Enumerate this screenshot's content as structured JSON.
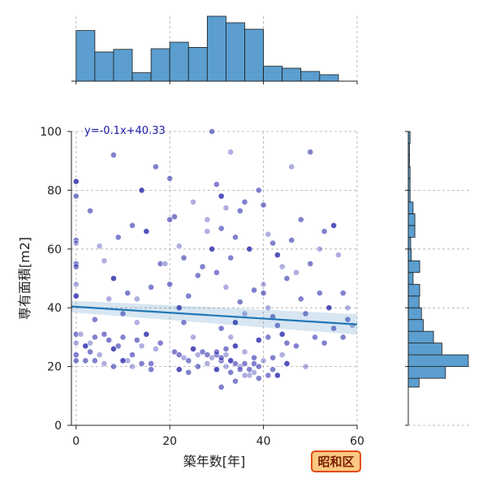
{
  "chart_data": {
    "type": "scatter",
    "title": "",
    "xlabel": "築年数[年]",
    "ylabel": "専有面積[m2]",
    "xlim": [
      -1,
      60
    ],
    "ylim": [
      0,
      100
    ],
    "xticks": [
      0,
      20,
      40,
      60
    ],
    "yticks": [
      0,
      20,
      40,
      60,
      80,
      100
    ],
    "grid": true,
    "regression": {
      "label": "y=-0.1x+40.33",
      "slope": -0.1,
      "intercept": 40.33,
      "color": "#1f77b4"
    },
    "point_color": "#1a1aa6",
    "hist_color": "#5b9ecf",
    "top_histogram": {
      "bin_edges": [
        0,
        4,
        8,
        12,
        16,
        20,
        24,
        28,
        32,
        36,
        40,
        44,
        48,
        52,
        56
      ],
      "relative_heights": [
        0.78,
        0.45,
        0.49,
        0.13,
        0.5,
        0.6,
        0.52,
        1.0,
        0.9,
        0.8,
        0.23,
        0.2,
        0.15,
        0.1
      ]
    },
    "right_histogram": {
      "bin_edges": [
        13,
        16,
        20,
        24,
        28,
        32,
        36,
        40,
        44,
        48,
        52,
        56,
        60,
        64,
        68,
        72,
        76,
        80,
        84,
        88,
        92,
        96,
        100
      ],
      "relative_widths": [
        0.18,
        0.62,
        1.0,
        0.56,
        0.42,
        0.25,
        0.22,
        0.18,
        0.19,
        0.08,
        0.19,
        0.05,
        0.04,
        0.11,
        0.11,
        0.08,
        0.03,
        0.03,
        0.03,
        0.02,
        0.02,
        0.03
      ]
    },
    "points": [
      [
        0,
        83
      ],
      [
        0,
        78
      ],
      [
        0,
        63
      ],
      [
        0,
        62
      ],
      [
        0,
        55
      ],
      [
        0,
        54
      ],
      [
        0,
        48
      ],
      [
        0,
        44
      ],
      [
        0,
        31
      ],
      [
        0,
        28
      ],
      [
        0,
        24
      ],
      [
        0,
        22
      ],
      [
        1,
        31
      ],
      [
        2,
        22
      ],
      [
        2,
        27
      ],
      [
        3,
        28
      ],
      [
        3,
        25
      ],
      [
        4,
        30
      ],
      [
        5,
        24
      ],
      [
        6,
        31
      ],
      [
        7,
        29
      ],
      [
        8,
        26
      ],
      [
        9,
        27
      ],
      [
        10,
        30
      ],
      [
        11,
        22
      ],
      [
        12,
        24
      ],
      [
        13,
        29
      ],
      [
        14,
        27
      ],
      [
        15,
        31
      ],
      [
        16,
        21
      ],
      [
        17,
        26
      ],
      [
        18,
        28
      ],
      [
        4,
        22
      ],
      [
        6,
        21
      ],
      [
        8,
        20
      ],
      [
        10,
        22
      ],
      [
        12,
        20
      ],
      [
        14,
        21
      ],
      [
        16,
        19
      ],
      [
        5,
        61
      ],
      [
        8,
        92
      ],
      [
        12,
        68
      ],
      [
        14,
        80
      ],
      [
        17,
        88
      ],
      [
        3,
        73
      ],
      [
        6,
        56
      ],
      [
        9,
        64
      ],
      [
        11,
        45
      ],
      [
        13,
        43
      ],
      [
        15,
        66
      ],
      [
        18,
        55
      ],
      [
        7,
        43
      ],
      [
        4,
        36
      ],
      [
        10,
        38
      ],
      [
        13,
        35
      ],
      [
        16,
        47
      ],
      [
        8,
        50
      ],
      [
        19,
        55
      ],
      [
        20,
        84
      ],
      [
        21,
        71
      ],
      [
        22,
        61
      ],
      [
        23,
        57
      ],
      [
        20,
        48
      ],
      [
        22,
        40
      ],
      [
        23,
        35
      ],
      [
        24,
        44
      ],
      [
        25,
        30
      ],
      [
        26,
        51
      ],
      [
        27,
        54
      ],
      [
        28,
        66
      ],
      [
        29,
        60
      ],
      [
        20,
        70
      ],
      [
        25,
        76
      ],
      [
        21,
        25
      ],
      [
        22,
        24
      ],
      [
        23,
        23
      ],
      [
        24,
        22
      ],
      [
        25,
        26
      ],
      [
        26,
        24
      ],
      [
        27,
        25
      ],
      [
        28,
        24
      ],
      [
        29,
        23
      ],
      [
        30,
        24
      ],
      [
        31,
        22
      ],
      [
        22,
        19
      ],
      [
        24,
        18
      ],
      [
        26,
        20
      ],
      [
        28,
        21
      ],
      [
        30,
        25
      ],
      [
        31,
        23
      ],
      [
        32,
        24
      ],
      [
        33,
        22
      ],
      [
        34,
        21
      ],
      [
        35,
        20
      ],
      [
        36,
        21
      ],
      [
        37,
        19
      ],
      [
        38,
        18
      ],
      [
        32,
        26
      ],
      [
        34,
        27
      ],
      [
        36,
        25
      ],
      [
        38,
        23
      ],
      [
        39,
        20
      ],
      [
        40,
        22
      ],
      [
        41,
        17
      ],
      [
        42,
        19
      ],
      [
        43,
        17
      ],
      [
        33,
        18
      ],
      [
        35,
        19
      ],
      [
        37,
        17
      ],
      [
        39,
        16
      ],
      [
        34,
        15
      ],
      [
        32,
        20
      ],
      [
        30,
        19
      ],
      [
        31,
        13
      ],
      [
        36,
        17
      ],
      [
        38,
        21
      ],
      [
        29,
        100
      ],
      [
        33,
        93
      ],
      [
        30,
        82
      ],
      [
        31,
        78
      ],
      [
        32,
        74
      ],
      [
        35,
        73
      ],
      [
        36,
        76
      ],
      [
        28,
        70
      ],
      [
        31,
        67
      ],
      [
        34,
        64
      ],
      [
        37,
        60
      ],
      [
        33,
        57
      ],
      [
        30,
        52
      ],
      [
        32,
        47
      ],
      [
        35,
        42
      ],
      [
        38,
        46
      ],
      [
        36,
        38
      ],
      [
        34,
        35
      ],
      [
        31,
        33
      ],
      [
        33,
        30
      ],
      [
        39,
        80
      ],
      [
        40,
        75
      ],
      [
        41,
        65
      ],
      [
        42,
        62
      ],
      [
        43,
        58
      ],
      [
        44,
        54
      ],
      [
        45,
        50
      ],
      [
        40,
        45
      ],
      [
        41,
        40
      ],
      [
        42,
        37
      ],
      [
        43,
        34
      ],
      [
        44,
        31
      ],
      [
        45,
        28
      ],
      [
        46,
        63
      ],
      [
        47,
        52
      ],
      [
        48,
        43
      ],
      [
        49,
        38
      ],
      [
        40,
        48
      ],
      [
        39,
        29
      ],
      [
        41,
        30
      ],
      [
        46,
        88
      ],
      [
        48,
        70
      ],
      [
        50,
        93
      ],
      [
        52,
        60
      ],
      [
        53,
        66
      ],
      [
        55,
        68
      ],
      [
        56,
        58
      ],
      [
        57,
        45
      ],
      [
        58,
        36
      ],
      [
        59,
        34
      ],
      [
        50,
        55
      ],
      [
        52,
        45
      ],
      [
        54,
        40
      ],
      [
        55,
        33
      ],
      [
        57,
        30
      ],
      [
        58,
        40
      ],
      [
        51,
        30
      ],
      [
        53,
        28
      ],
      [
        49,
        20
      ],
      [
        45,
        21
      ],
      [
        47,
        27
      ],
      [
        44,
        24
      ],
      [
        42,
        23
      ]
    ]
  },
  "badge": {
    "label": "昭和区",
    "fill": "#fcc983",
    "border": "#e24d12"
  }
}
